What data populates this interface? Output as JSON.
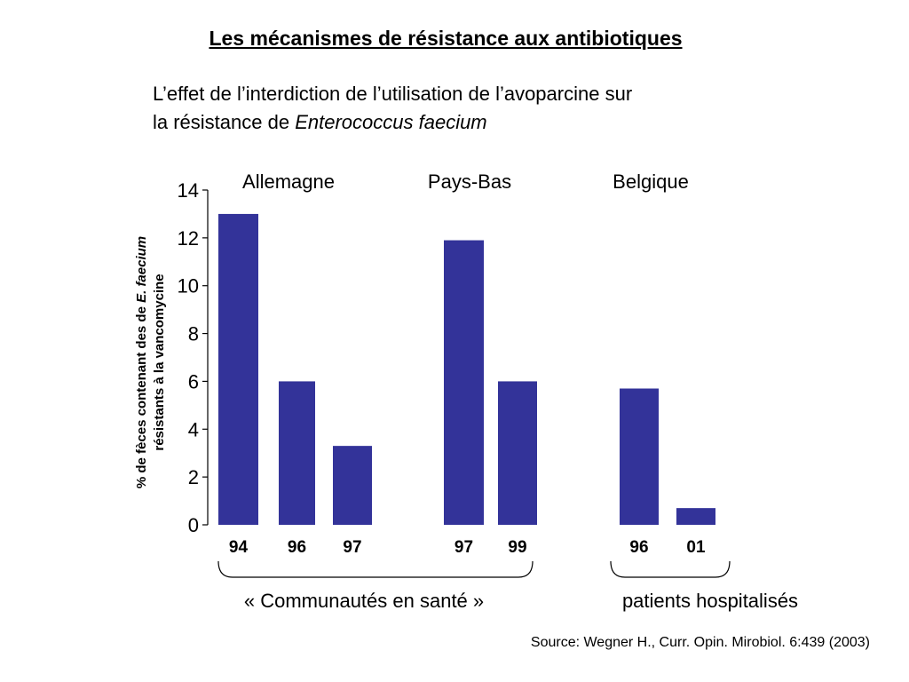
{
  "title": "Les mécanismes de résistance aux antibiotiques",
  "subtitle": {
    "line1": "L’effet de l’interdiction de l’utilisation de l’avoparcine sur",
    "line2_prefix": "la résistance de ",
    "line2_italic": "Enterococcus faecium"
  },
  "ylabel": {
    "line1_prefix": "% de fèces contenant des de ",
    "line1_italic": "E. faecium",
    "line2": "résistants à la vancomycine"
  },
  "groups": [
    "Allemagne",
    "Pays-Bas",
    "Belgique"
  ],
  "captions": {
    "community": "« Communautés en santé »",
    "hospital": "patients hospitalisés"
  },
  "source": "Source: Wegner H., Curr. Opin. Mirobiol. 6:439 (2003)",
  "chart_data": {
    "type": "bar",
    "ylim": [
      0,
      14
    ],
    "yticks": [
      0,
      2,
      4,
      6,
      8,
      10,
      12,
      14
    ],
    "bar_color": "#333399",
    "bars": [
      {
        "group": "Allemagne",
        "label": "94",
        "value": 13.0
      },
      {
        "group": "Allemagne",
        "label": "96",
        "value": 6.0
      },
      {
        "group": "Allemagne",
        "label": "97",
        "value": 3.3
      },
      {
        "group": "Pays-Bas",
        "label": "97",
        "value": 11.9
      },
      {
        "group": "Pays-Bas",
        "label": "99",
        "value": 6.0
      },
      {
        "group": "Belgique",
        "label": "96",
        "value": 5.7
      },
      {
        "group": "Belgique",
        "label": "01",
        "value": 0.7
      }
    ]
  }
}
